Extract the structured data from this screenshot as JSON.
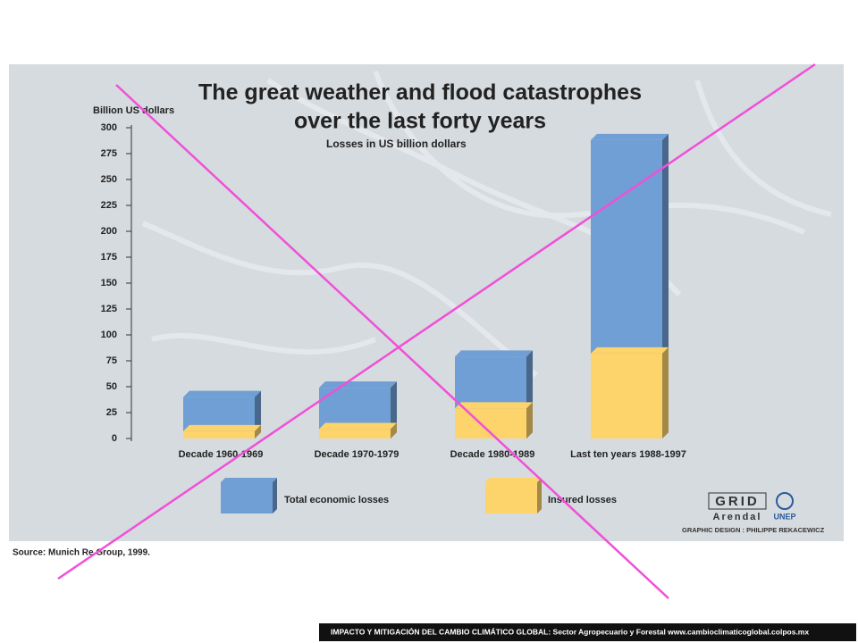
{
  "chart_data": {
    "type": "bar",
    "title": [
      "The great weather and flood catastrophes",
      "over the last forty years"
    ],
    "subtitle": "Losses in US billion dollars",
    "y_label": "Billion US dollars",
    "categories": [
      "Decade 1960-1969",
      "Decade 1970-1979",
      "Decade 1980-1989",
      "Last ten years 1988-1997"
    ],
    "series": [
      {
        "name": "Total economic losses",
        "color": "#6f9fd4",
        "values": [
          40,
          49,
          79,
          288
        ]
      },
      {
        "name": "Insured losses",
        "color": "#fdd36b",
        "values": [
          7,
          9,
          29,
          82
        ]
      }
    ],
    "ylim": [
      0,
      300
    ],
    "yticks": [
      0,
      25,
      50,
      75,
      100,
      125,
      150,
      175,
      200,
      225,
      250,
      275,
      300
    ],
    "source": "Source: Munich Re Group, 1999.",
    "credits": {
      "org": "GRID",
      "org_sub": "Arendal",
      "unep": "UNEP",
      "design": "GRAPHIC DESIGN : PHILIPPE REKACEWICZ"
    }
  },
  "footer": "IMPACTO Y MITIGACIÓN DEL CAMBIO CLIMÁTICO GLOBAL: Sector Agropecuario y Forestal www.cambioclimaticoglobal.colpos.mx"
}
